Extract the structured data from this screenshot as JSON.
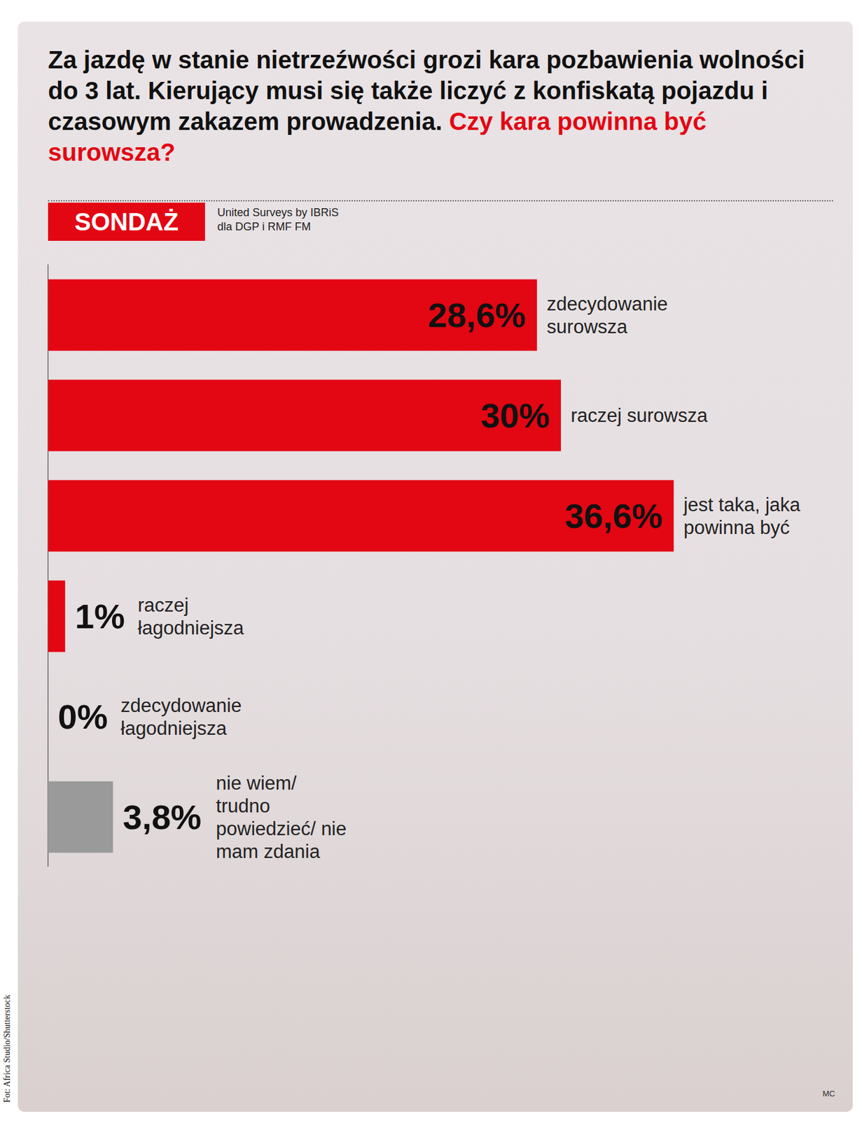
{
  "chart_data": {
    "type": "bar",
    "orientation": "horizontal",
    "title": "Za jazdę w stanie nietrzeźwości grozi kara pozbawienia wolności do 3 lat. Kierujący musi się także liczyć z konfiskatą pojazdu i czasowym zakazem prowadzenia.",
    "subtitle": "Czy kara powinna być surowsza?",
    "badge": "SONDAŻ",
    "source": [
      "United Surveys by IBRiS",
      "dla DGP i RMF FM"
    ],
    "categories": [
      "zdecydowanie surowsza",
      "raczej surowsza",
      "jest taka, jaka powinna być",
      "raczej łagodniejsza",
      "zdecydowanie łagodniejsza",
      "nie wiem/ trudno powiedzieć/ nie mam zdania"
    ],
    "values": [
      28.6,
      30,
      36.6,
      1,
      0,
      3.8
    ],
    "value_labels": [
      "28,6%",
      "30%",
      "36,6%",
      "1%",
      "0%",
      "3,8%"
    ],
    "colors": [
      "#e30613",
      "#e30613",
      "#e30613",
      "#e30613",
      "#e30613",
      "#9a9a9a"
    ],
    "xlim": [
      0,
      47
    ],
    "data_labels": true,
    "tick_labels": false,
    "grid": false,
    "credit": "Fot: Africa Studio/Shutterstock",
    "signature": "MC"
  }
}
